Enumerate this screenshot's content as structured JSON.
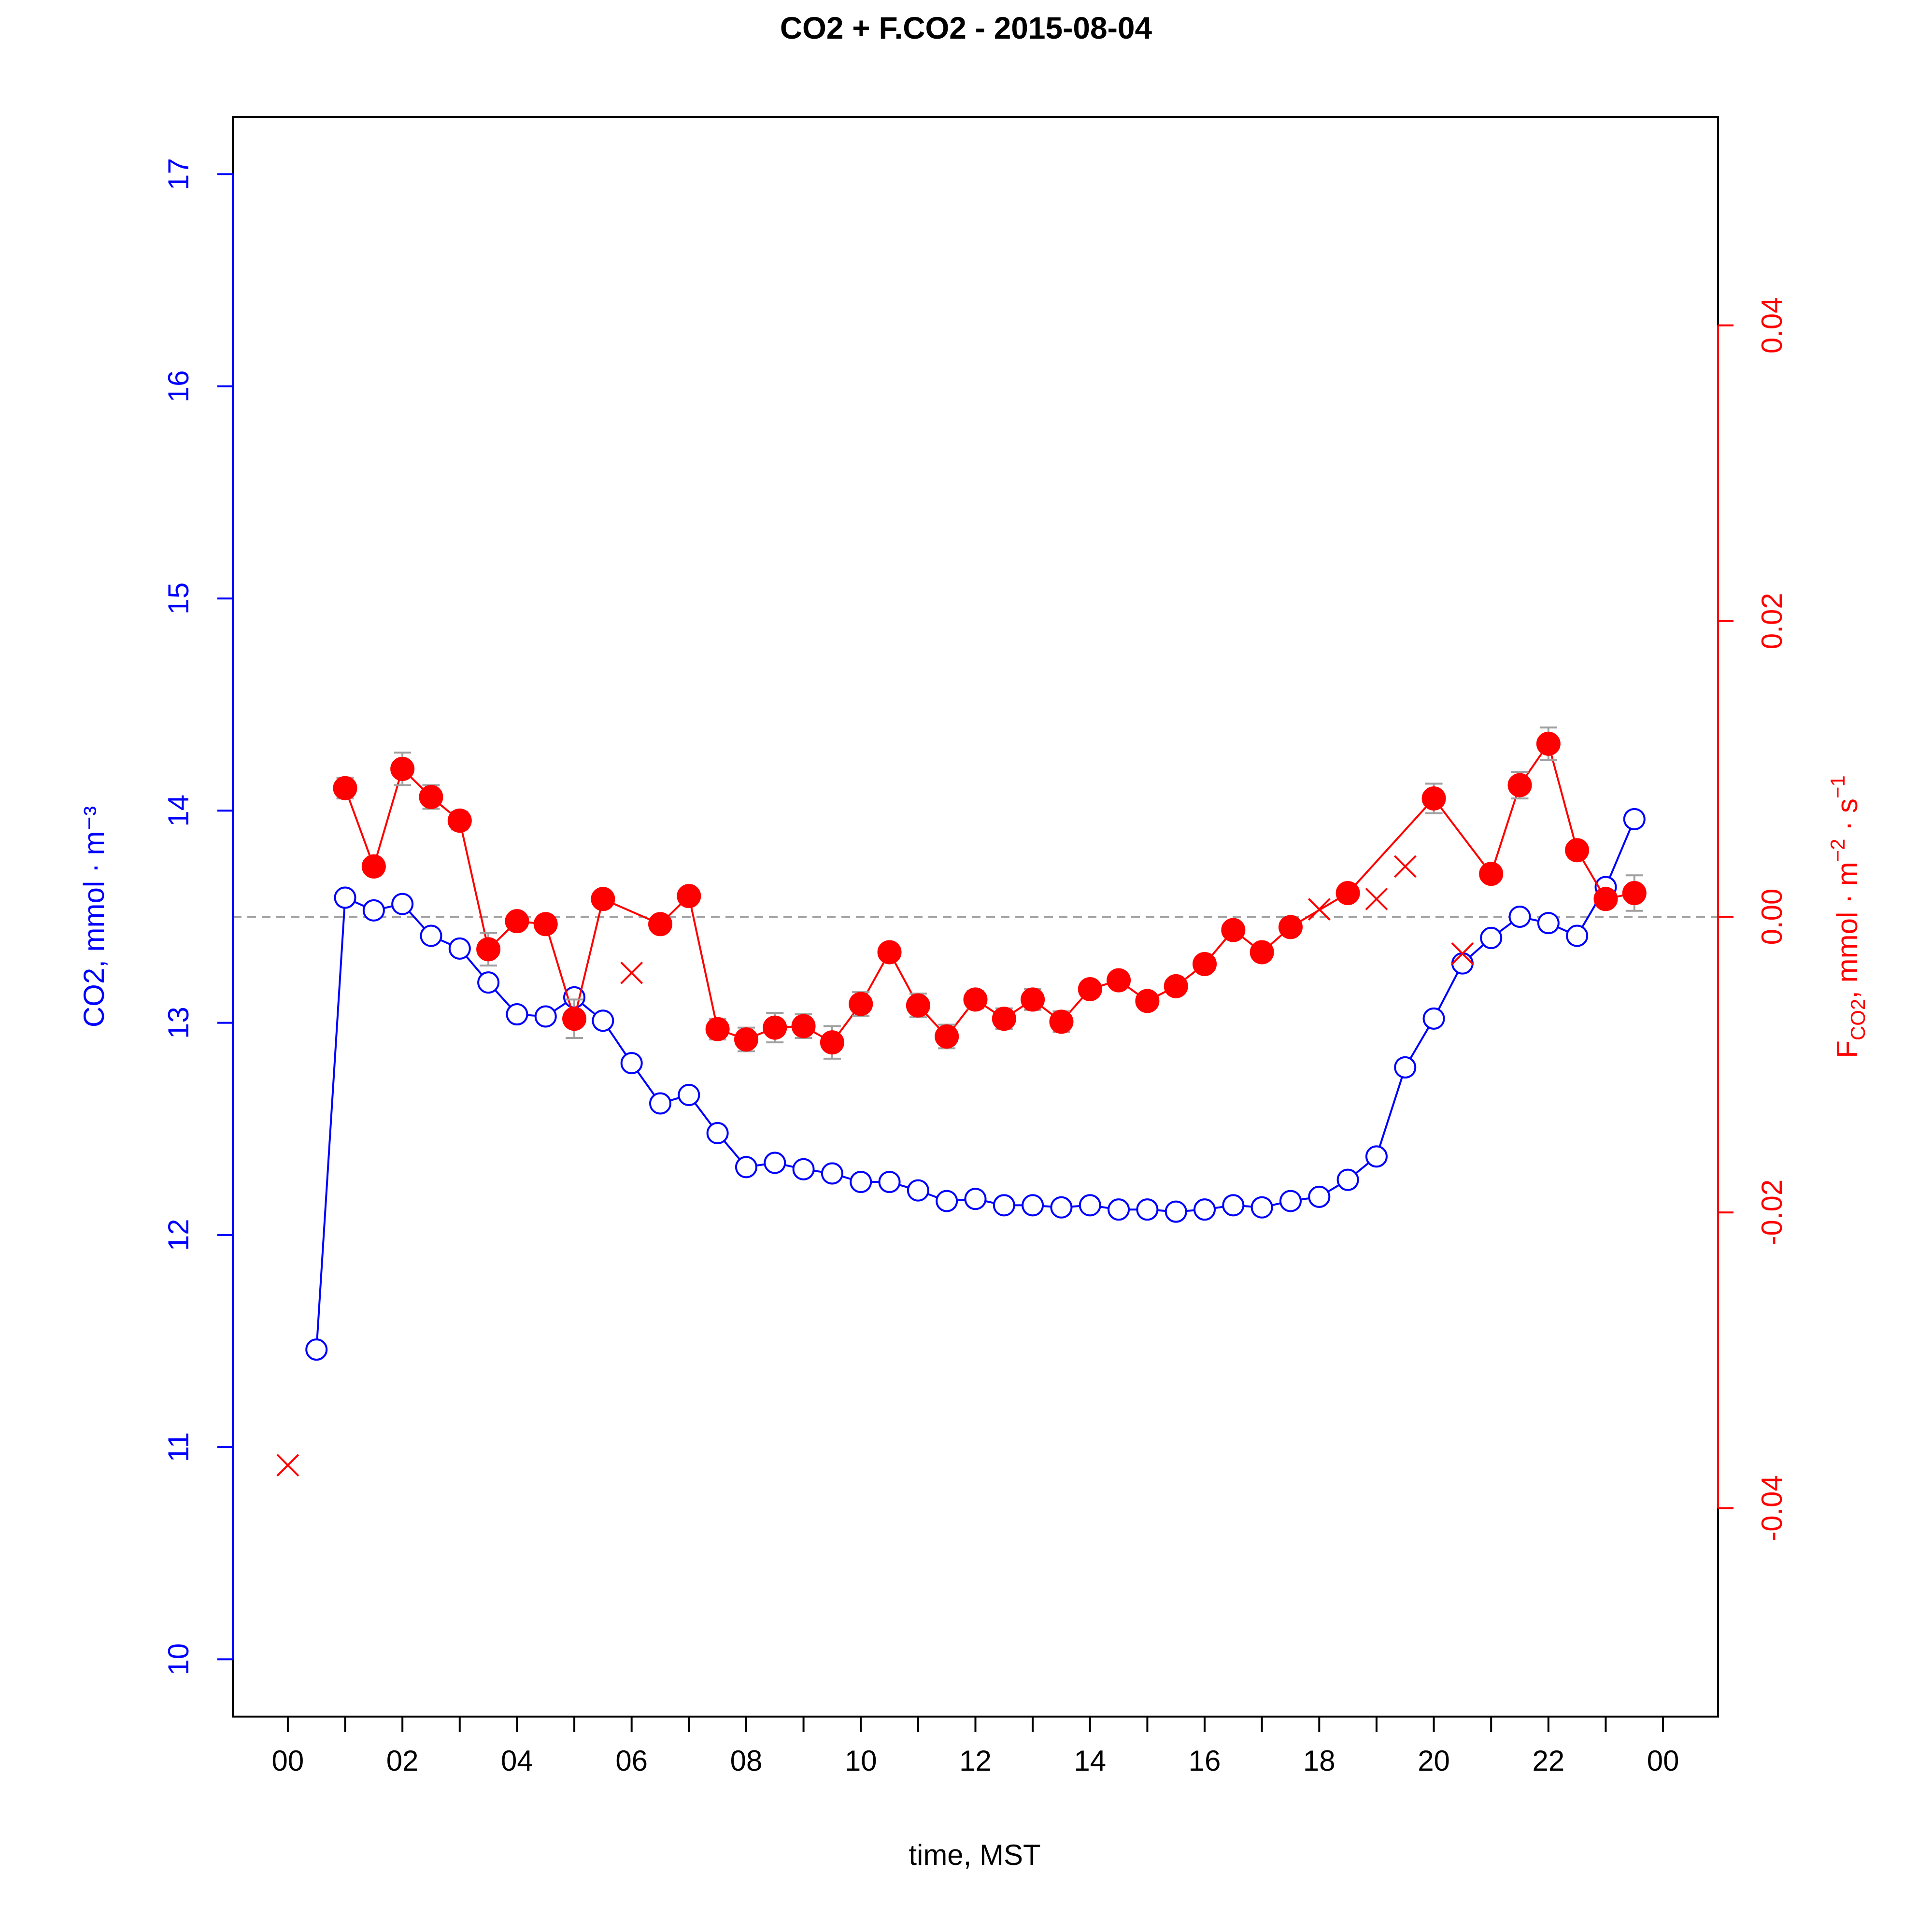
{
  "chart_data": {
    "type": "line",
    "title": "CO2 + F.CO2 -  2015-08-04",
    "xlabel": "time, MST",
    "ylabel_left": "CO2, mmol · m⁻³",
    "ylabel_right": {
      "base": "F",
      "sub": "CO2",
      "rest1": ", mmol · m",
      "sup1": "−2",
      "rest2": " · s",
      "sup2": "−1"
    },
    "x_ticklabels": [
      "00",
      "02",
      "04",
      "06",
      "08",
      "10",
      "12",
      "14",
      "16",
      "18",
      "20",
      "22",
      "00"
    ],
    "y_left_ticks": [
      "10",
      "11",
      "12",
      "13",
      "14",
      "15",
      "16",
      "17"
    ],
    "y_right_ticks": [
      "-0.04",
      "-0.02",
      "0.00",
      "0.02",
      "0.04"
    ],
    "xlim": [
      -0.96,
      24.96
    ],
    "ylim_left": [
      9.73,
      17.27
    ],
    "ylim_right": [
      -0.0541,
      0.0541
    ],
    "zero_line": 0.0,
    "colors": {
      "co2": "#0000FF",
      "flux": "#FF0000",
      "errorbar": "#A0A0A0",
      "zero_line": "#A0A0A0"
    },
    "co2_series": {
      "name": "CO2",
      "x": [
        0.5,
        1.0,
        1.5,
        2.0,
        2.5,
        3.0,
        3.5,
        4.0,
        4.5,
        5.0,
        5.5,
        6.0,
        6.5,
        7.0,
        7.5,
        8.0,
        8.5,
        9.0,
        9.5,
        10.0,
        10.5,
        11.0,
        11.5,
        12.0,
        12.5,
        13.0,
        13.5,
        14.0,
        14.5,
        15.0,
        15.5,
        16.0,
        16.5,
        17.0,
        17.5,
        18.0,
        18.5,
        19.0,
        19.5,
        20.0,
        20.5,
        21.0,
        21.5,
        22.0,
        22.5,
        23.0,
        23.5
      ],
      "y": [
        11.46,
        13.59,
        13.53,
        13.56,
        13.41,
        13.35,
        13.19,
        13.04,
        13.03,
        13.12,
        13.01,
        12.81,
        12.62,
        12.66,
        12.48,
        12.32,
        12.34,
        12.31,
        12.29,
        12.25,
        12.25,
        12.21,
        12.16,
        12.17,
        12.14,
        12.14,
        12.13,
        12.14,
        12.12,
        12.12,
        12.11,
        12.12,
        12.14,
        12.13,
        12.16,
        12.18,
        12.26,
        12.37,
        12.79,
        13.02,
        13.28,
        13.4,
        13.5,
        13.47,
        13.41,
        13.64,
        13.96
      ]
    },
    "flux_series": {
      "name": "F.CO2",
      "x": [
        1.0,
        1.5,
        2.0,
        2.5,
        3.0,
        3.5,
        4.0,
        4.5,
        5.0,
        5.5,
        6.5,
        7.0,
        7.5,
        8.0,
        8.5,
        9.0,
        9.5,
        10.0,
        10.5,
        11.0,
        11.5,
        12.0,
        12.5,
        13.0,
        13.5,
        14.0,
        14.5,
        15.0,
        15.5,
        16.0,
        16.5,
        17.0,
        17.5,
        18.5,
        20.0,
        21.0,
        21.5,
        22.0,
        22.5,
        23.0,
        23.5
      ],
      "y": [
        0.0087,
        0.0034,
        0.01,
        0.0081,
        0.0065,
        -0.0022,
        -0.0003,
        -0.0005,
        -0.0069,
        0.0012,
        -0.0005,
        0.0014,
        -0.0076,
        -0.0083,
        -0.0075,
        -0.0074,
        -0.0085,
        -0.0059,
        -0.0024,
        -0.006,
        -0.0081,
        -0.0056,
        -0.0069,
        -0.0056,
        -0.0071,
        -0.0049,
        -0.0043,
        -0.0057,
        -0.0047,
        -0.0032,
        -0.0009,
        -0.0024,
        -0.0007,
        0.0016,
        0.008,
        0.0029,
        0.0089,
        0.0117,
        0.0045,
        0.0012,
        0.0016
      ],
      "err": [
        0.0007,
        0.0005,
        0.0011,
        0.0008,
        0.0006,
        0.0011,
        0.0003,
        0.0003,
        0.0013,
        0.0003,
        0.0003,
        0.0003,
        0.0007,
        0.0008,
        0.001,
        0.0008,
        0.0011,
        0.0008,
        0.0005,
        0.0008,
        0.0008,
        0.0006,
        0.0007,
        0.0007,
        0.0007,
        0.0005,
        0.0004,
        0.0005,
        0.0004,
        0.0003,
        0.0003,
        0.0004,
        0.0004,
        0.0005,
        0.001,
        0.0004,
        0.0009,
        0.0011,
        0.0005,
        0.0003,
        0.0012
      ]
    },
    "flux_gapfilled": {
      "name": "F.CO2 (flagged)",
      "x": [
        0.0,
        6.0,
        18.0,
        19.0,
        19.5,
        20.5
      ],
      "y": [
        -0.0371,
        -0.0038,
        0.0005,
        0.0012,
        0.0034,
        -0.0025
      ]
    }
  }
}
